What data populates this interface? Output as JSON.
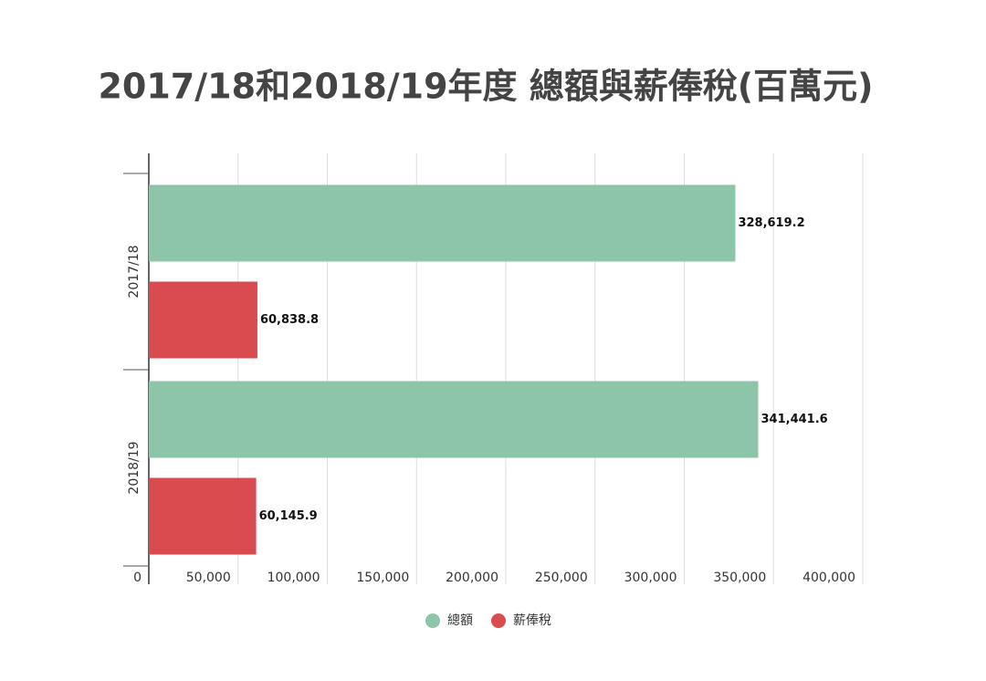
{
  "chart_data": {
    "type": "hbar",
    "title": "2017/18和2018/19年度 總額與薪俸稅(百萬元)",
    "categories": [
      "2017/18",
      "2018/19"
    ],
    "series": [
      {
        "name": "總額",
        "color": "#8dc5a8",
        "values": [
          328619.2,
          341441.6
        ],
        "value_labels": [
          "328,619.2",
          "341,441.6"
        ]
      },
      {
        "name": "薪俸稅",
        "color": "#d94b4f",
        "values": [
          60838.8,
          60145.9
        ],
        "value_labels": [
          "60,838.8",
          "60,145.9"
        ]
      }
    ],
    "xlim": [
      0,
      400000
    ],
    "xticks": [
      0,
      {
        "value": 50000,
        "label": "50,000"
      },
      {
        "value": 100000,
        "label": "100,000"
      },
      {
        "value": 150000,
        "label": "150,000"
      },
      {
        "value": 200000,
        "label": "200,000"
      },
      {
        "value": 250000,
        "label": "250,000"
      },
      {
        "value": 300000,
        "label": "300,000"
      },
      {
        "value": 350000,
        "label": "350,000"
      },
      {
        "value": 400000,
        "label": "400,000"
      }
    ],
    "grid": true,
    "legend": "bottom"
  }
}
